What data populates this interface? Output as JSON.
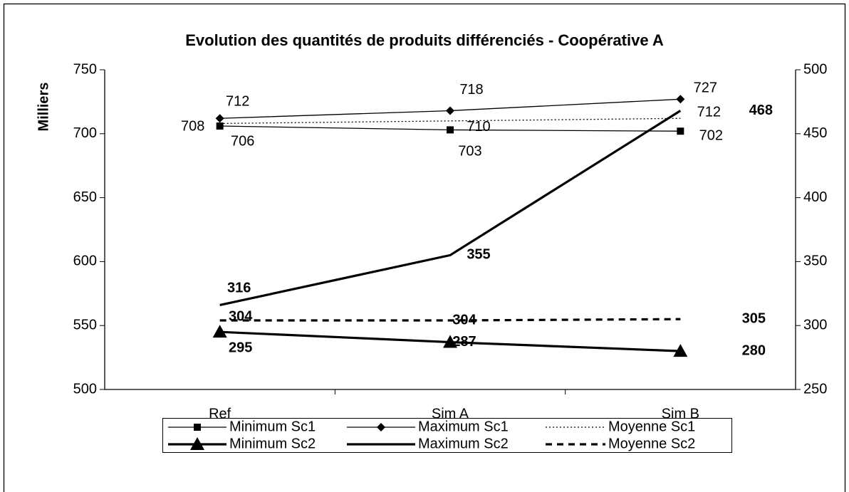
{
  "chart_data": {
    "type": "line",
    "title": "Evolution des quantités de produits différenciés - Coopérative A",
    "y_label": "Milliers",
    "categories": [
      "Ref",
      "Sim A",
      "Sim B"
    ],
    "ylim": [
      500,
      750
    ],
    "yticks": [
      500,
      550,
      600,
      650,
      700,
      750
    ],
    "y2lim": [
      250,
      500
    ],
    "y2ticks": [
      250,
      300,
      350,
      400,
      450,
      500
    ],
    "grid": false,
    "legend": "bottom",
    "series": [
      {
        "name": "Minimum Sc1",
        "color": "#000000",
        "values": [
          706,
          703,
          702
        ],
        "marker": "square",
        "line_style": "solid",
        "line_width": 1.3
      },
      {
        "name": "Maximum Sc1",
        "color": "#000000",
        "values": [
          712,
          718,
          727
        ],
        "marker": "diamond",
        "line_style": "solid",
        "line_width": 1.3
      },
      {
        "name": "Moyenne Sc1",
        "color": "#000000",
        "values": [
          708,
          710,
          712
        ],
        "marker": "none",
        "line_style": "dotted",
        "line_width": 1.3
      },
      {
        "name": "Minimum Sc2",
        "color": "#000000",
        "values": [
          295,
          287,
          280
        ],
        "axis": "y2",
        "marker": "triangle",
        "line_style": "solid",
        "line_width": 3.2
      },
      {
        "name": "Maximum Sc2",
        "color": "#000000",
        "values": [
          316,
          355,
          468
        ],
        "axis": "y2",
        "marker": "none",
        "line_style": "solid",
        "line_width": 3.2
      },
      {
        "name": "Moyenne Sc2",
        "color": "#000000",
        "values": [
          304,
          304,
          305
        ],
        "axis": "y2",
        "marker": "none",
        "line_style": "dashed",
        "line_width": 3.2
      }
    ]
  }
}
